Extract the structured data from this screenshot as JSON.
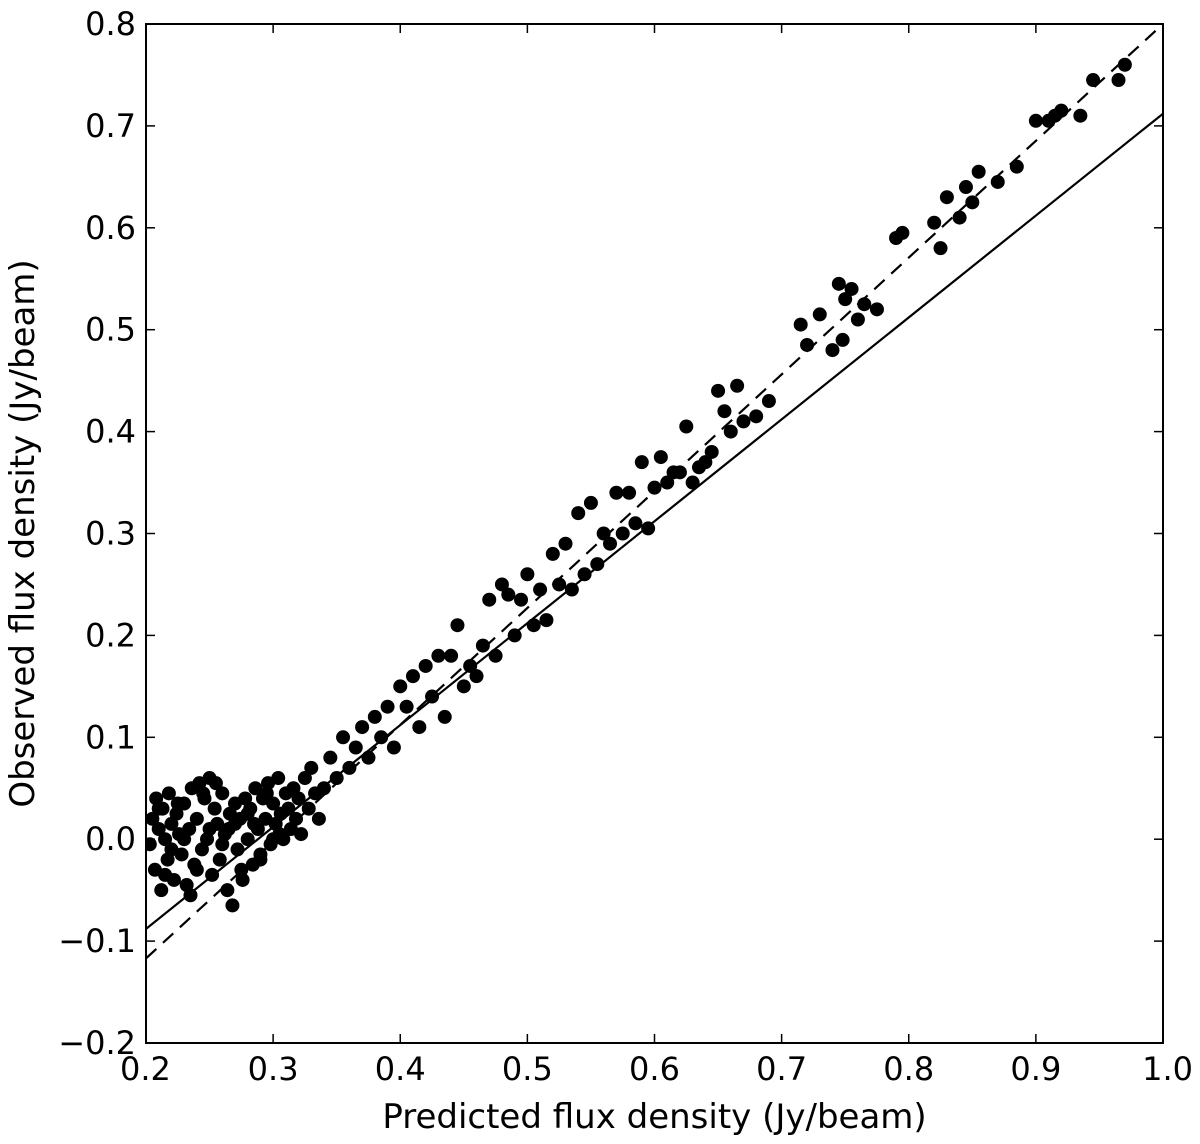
{
  "chart_data": {
    "type": "scatter",
    "title": "",
    "xlabel": "Predicted flux density (Jy/beam)",
    "ylabel": "Observed flux density (Jy/beam)",
    "xlim": [
      0.2,
      1.0
    ],
    "ylim": [
      -0.2,
      0.8
    ],
    "x_ticks": [
      0.2,
      0.3,
      0.4,
      0.5,
      0.6,
      0.7,
      0.8,
      0.9,
      1.0
    ],
    "y_ticks": [
      -0.2,
      -0.1,
      0.0,
      0.1,
      0.2,
      0.3,
      0.4,
      0.5,
      0.6,
      0.7,
      0.8
    ],
    "x_tick_labels": [
      "0.2",
      "0.3",
      "0.4",
      "0.5",
      "0.6",
      "0.7",
      "0.8",
      "0.9",
      "1.0"
    ],
    "y_tick_labels": [
      "−0.2",
      "−0.1",
      "0.0",
      "0.1",
      "0.2",
      "0.3",
      "0.4",
      "0.5",
      "0.6",
      "0.7",
      "0.8"
    ],
    "grid": false,
    "point_color": "#000000",
    "series": [
      {
        "marker": "circle",
        "points": [
          [
            0.203,
            -0.005
          ],
          [
            0.205,
            0.02
          ],
          [
            0.207,
            -0.03
          ],
          [
            0.208,
            0.04
          ],
          [
            0.21,
            0.01
          ],
          [
            0.212,
            -0.05
          ],
          [
            0.213,
            0.03
          ],
          [
            0.215,
            0.0
          ],
          [
            0.217,
            -0.02
          ],
          [
            0.218,
            0.045
          ],
          [
            0.22,
            0.015
          ],
          [
            0.222,
            -0.04
          ],
          [
            0.224,
            0.025
          ],
          [
            0.226,
            0.005
          ],
          [
            0.228,
            -0.015
          ],
          [
            0.23,
            0.035
          ],
          [
            0.232,
            -0.045
          ],
          [
            0.234,
            0.01
          ],
          [
            0.236,
            0.05
          ],
          [
            0.238,
            -0.025
          ],
          [
            0.24,
            0.02
          ],
          [
            0.242,
            0.055
          ],
          [
            0.244,
            -0.01
          ],
          [
            0.246,
            0.04
          ],
          [
            0.248,
            0.0
          ],
          [
            0.25,
            0.06
          ],
          [
            0.252,
            -0.035
          ],
          [
            0.254,
            0.03
          ],
          [
            0.256,
            0.015
          ],
          [
            0.258,
            -0.02
          ],
          [
            0.26,
            0.045
          ],
          [
            0.262,
            0.005
          ],
          [
            0.264,
            -0.05
          ],
          [
            0.266,
            0.025
          ],
          [
            0.268,
            -0.065
          ],
          [
            0.27,
            0.035
          ],
          [
            0.272,
            -0.01
          ],
          [
            0.274,
            0.02
          ],
          [
            0.276,
            -0.04
          ],
          [
            0.278,
            0.04
          ],
          [
            0.28,
            0.0
          ],
          [
            0.282,
            0.03
          ],
          [
            0.284,
            -0.025
          ],
          [
            0.286,
            0.05
          ],
          [
            0.288,
            0.01
          ],
          [
            0.29,
            -0.015
          ],
          [
            0.292,
            0.04
          ],
          [
            0.294,
            0.02
          ],
          [
            0.296,
            0.055
          ],
          [
            0.298,
            -0.005
          ],
          [
            0.3,
            0.035
          ],
          [
            0.302,
            0.015
          ],
          [
            0.304,
            0.06
          ],
          [
            0.306,
            0.025
          ],
          [
            0.308,
            0.0
          ],
          [
            0.31,
            0.045
          ],
          [
            0.312,
            0.03
          ],
          [
            0.314,
            0.01
          ],
          [
            0.316,
            0.05
          ],
          [
            0.318,
            0.02
          ],
          [
            0.32,
            0.04
          ],
          [
            0.322,
            0.005
          ],
          [
            0.325,
            0.06
          ],
          [
            0.328,
            0.03
          ],
          [
            0.33,
            0.07
          ],
          [
            0.333,
            0.045
          ],
          [
            0.336,
            0.02
          ],
          [
            0.34,
            0.05
          ],
          [
            0.345,
            0.08
          ],
          [
            0.35,
            0.06
          ],
          [
            0.215,
            -0.035
          ],
          [
            0.225,
            0.035
          ],
          [
            0.235,
            -0.055
          ],
          [
            0.245,
            0.045
          ],
          [
            0.255,
            0.055
          ],
          [
            0.265,
            0.01
          ],
          [
            0.275,
            -0.03
          ],
          [
            0.285,
            0.015
          ],
          [
            0.295,
            0.045
          ],
          [
            0.305,
            0.005
          ],
          [
            0.21,
            0.03
          ],
          [
            0.22,
            -0.01
          ],
          [
            0.23,
            0.0
          ],
          [
            0.24,
            -0.03
          ],
          [
            0.25,
            0.01
          ],
          [
            0.26,
            -0.005
          ],
          [
            0.27,
            0.015
          ],
          [
            0.28,
            0.025
          ],
          [
            0.29,
            -0.02
          ],
          [
            0.3,
            0.0
          ],
          [
            0.355,
            0.1
          ],
          [
            0.36,
            0.07
          ],
          [
            0.365,
            0.09
          ],
          [
            0.37,
            0.11
          ],
          [
            0.375,
            0.08
          ],
          [
            0.38,
            0.12
          ],
          [
            0.385,
            0.1
          ],
          [
            0.39,
            0.13
          ],
          [
            0.395,
            0.09
          ],
          [
            0.4,
            0.15
          ],
          [
            0.405,
            0.13
          ],
          [
            0.41,
            0.16
          ],
          [
            0.415,
            0.11
          ],
          [
            0.42,
            0.17
          ],
          [
            0.425,
            0.14
          ],
          [
            0.43,
            0.18
          ],
          [
            0.435,
            0.12
          ],
          [
            0.44,
            0.18
          ],
          [
            0.445,
            0.21
          ],
          [
            0.45,
            0.15
          ],
          [
            0.455,
            0.17
          ],
          [
            0.46,
            0.16
          ],
          [
            0.465,
            0.19
          ],
          [
            0.47,
            0.235
          ],
          [
            0.475,
            0.18
          ],
          [
            0.48,
            0.25
          ],
          [
            0.485,
            0.24
          ],
          [
            0.49,
            0.2
          ],
          [
            0.495,
            0.235
          ],
          [
            0.5,
            0.26
          ],
          [
            0.505,
            0.21
          ],
          [
            0.51,
            0.245
          ],
          [
            0.515,
            0.215
          ],
          [
            0.52,
            0.28
          ],
          [
            0.525,
            0.25
          ],
          [
            0.53,
            0.29
          ],
          [
            0.535,
            0.245
          ],
          [
            0.54,
            0.32
          ],
          [
            0.545,
            0.26
          ],
          [
            0.55,
            0.33
          ],
          [
            0.555,
            0.27
          ],
          [
            0.56,
            0.3
          ],
          [
            0.565,
            0.29
          ],
          [
            0.57,
            0.34
          ],
          [
            0.575,
            0.3
          ],
          [
            0.58,
            0.34
          ],
          [
            0.585,
            0.31
          ],
          [
            0.59,
            0.37
          ],
          [
            0.595,
            0.305
          ],
          [
            0.6,
            0.345
          ],
          [
            0.605,
            0.375
          ],
          [
            0.61,
            0.35
          ],
          [
            0.615,
            0.36
          ],
          [
            0.62,
            0.36
          ],
          [
            0.625,
            0.405
          ],
          [
            0.63,
            0.35
          ],
          [
            0.635,
            0.365
          ],
          [
            0.64,
            0.37
          ],
          [
            0.645,
            0.38
          ],
          [
            0.65,
            0.44
          ],
          [
            0.655,
            0.42
          ],
          [
            0.66,
            0.4
          ],
          [
            0.665,
            0.445
          ],
          [
            0.67,
            0.41
          ],
          [
            0.68,
            0.415
          ],
          [
            0.69,
            0.43
          ],
          [
            0.715,
            0.505
          ],
          [
            0.72,
            0.485
          ],
          [
            0.73,
            0.515
          ],
          [
            0.74,
            0.48
          ],
          [
            0.745,
            0.545
          ],
          [
            0.748,
            0.49
          ],
          [
            0.75,
            0.53
          ],
          [
            0.755,
            0.54
          ],
          [
            0.76,
            0.51
          ],
          [
            0.765,
            0.525
          ],
          [
            0.775,
            0.52
          ],
          [
            0.79,
            0.59
          ],
          [
            0.795,
            0.595
          ],
          [
            0.82,
            0.605
          ],
          [
            0.825,
            0.58
          ],
          [
            0.83,
            0.63
          ],
          [
            0.84,
            0.61
          ],
          [
            0.845,
            0.64
          ],
          [
            0.85,
            0.625
          ],
          [
            0.855,
            0.655
          ],
          [
            0.87,
            0.645
          ],
          [
            0.885,
            0.66
          ],
          [
            0.9,
            0.705
          ],
          [
            0.91,
            0.705
          ],
          [
            0.915,
            0.71
          ],
          [
            0.92,
            0.715
          ],
          [
            0.935,
            0.71
          ],
          [
            0.945,
            0.745
          ],
          [
            0.965,
            0.745
          ],
          [
            0.97,
            0.76
          ]
        ]
      }
    ],
    "lines": [
      {
        "style": "solid",
        "from": [
          0.2,
          -0.088
        ],
        "to": [
          1.0,
          0.712
        ]
      },
      {
        "style": "dashed",
        "from": [
          0.2,
          -0.117
        ],
        "to": [
          1.0,
          0.8
        ]
      }
    ]
  }
}
